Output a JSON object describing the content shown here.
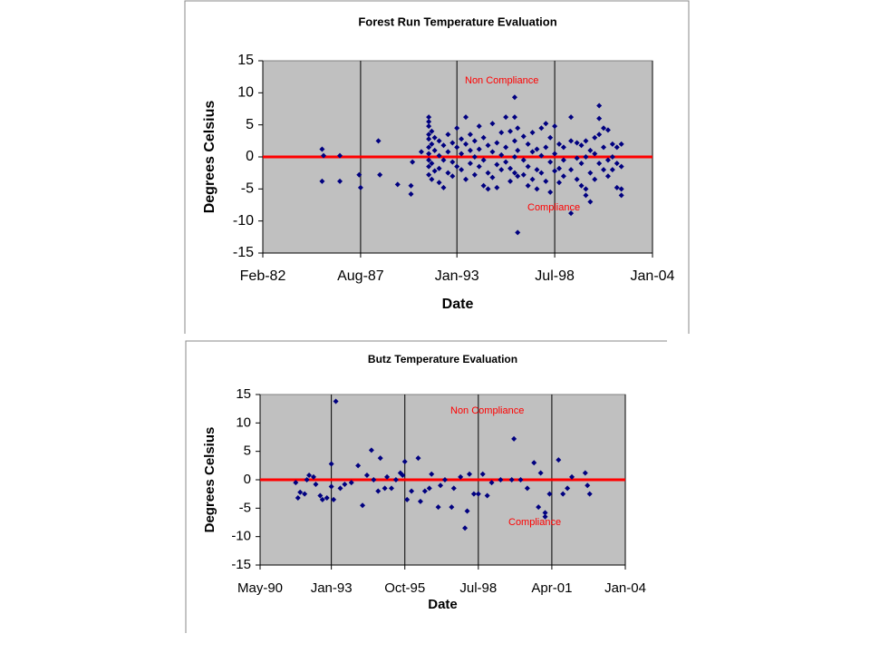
{
  "chart_data": [
    {
      "type": "scatter",
      "title": "Forest Run Temperature Evaluation",
      "xlabel": "Date",
      "ylabel": "Degrees Celsius",
      "color": "#000080",
      "x": [
        "1985-06",
        "1985-06",
        "1985-07",
        "1986-06",
        "1986-06",
        "1987-07",
        "1987-08",
        "1988-08",
        "1988-09",
        "1989-09",
        "1990-06",
        "1990-06",
        "1990-07",
        "1991-01",
        "1991-06",
        "1991-06",
        "1991-06",
        "1991-06",
        "1991-06",
        "1991-06",
        "1991-06",
        "1991-06",
        "1991-06",
        "1991-06",
        "1991-08",
        "1991-08",
        "1991-08",
        "1991-08",
        "1991-10",
        "1991-10",
        "1991-10",
        "1992-01",
        "1992-01",
        "1992-01",
        "1992-01",
        "1992-04",
        "1992-04",
        "1992-04",
        "1992-07",
        "1992-07",
        "1992-07",
        "1992-10",
        "1992-10",
        "1992-10",
        "1993-01",
        "1993-01",
        "1993-01",
        "1993-04",
        "1993-04",
        "1993-04",
        "1993-07",
        "1993-07",
        "1993-07",
        "1993-10",
        "1993-10",
        "1993-10",
        "1994-01",
        "1994-01",
        "1994-01",
        "1994-04",
        "1994-04",
        "1994-04",
        "1994-07",
        "1994-07",
        "1994-07",
        "1994-10",
        "1994-10",
        "1994-10",
        "1995-01",
        "1995-01",
        "1995-01",
        "1995-04",
        "1995-04",
        "1995-04",
        "1995-07",
        "1995-07",
        "1995-07",
        "1995-10",
        "1995-10",
        "1995-10",
        "1996-01",
        "1996-01",
        "1996-01",
        "1996-04",
        "1996-04",
        "1996-04",
        "1996-04",
        "1996-04",
        "1996-06",
        "1996-06",
        "1996-06",
        "1996-06",
        "1996-10",
        "1996-10",
        "1996-10",
        "1997-01",
        "1997-01",
        "1997-01",
        "1997-04",
        "1997-04",
        "1997-04",
        "1997-07",
        "1997-07",
        "1997-07",
        "1997-10",
        "1997-10",
        "1997-10",
        "1998-01",
        "1998-01",
        "1998-01",
        "1998-04",
        "1998-04",
        "1998-04",
        "1998-07",
        "1998-07",
        "1998-07",
        "1998-10",
        "1998-10",
        "1998-10",
        "1999-01",
        "1999-01",
        "1999-01",
        "1999-06",
        "1999-06",
        "1999-06",
        "1999-06",
        "1999-10",
        "1999-10",
        "1999-10",
        "2000-01",
        "2000-01",
        "2000-01",
        "2000-04",
        "2000-04",
        "2000-04",
        "2000-04",
        "2000-07",
        "2000-07",
        "2000-07",
        "2000-10",
        "2000-10",
        "2000-10",
        "2001-01",
        "2001-01",
        "2001-01",
        "2001-01",
        "2001-04",
        "2001-04",
        "2001-04",
        "2001-07",
        "2001-07",
        "2001-07",
        "2001-10",
        "2001-10",
        "2001-10",
        "2002-01",
        "2002-01",
        "2002-01",
        "2002-04",
        "2002-04",
        "2002-04",
        "2002-04"
      ],
      "y": [
        1.2,
        -3.8,
        0.2,
        0.2,
        -3.8,
        -2.8,
        -4.8,
        2.5,
        -2.8,
        -4.3,
        -4.5,
        -5.8,
        -0.8,
        0.8,
        6.2,
        5.5,
        4.8,
        3.5,
        2.8,
        1.5,
        0.5,
        -0.5,
        -1.5,
        -2.8,
        4.0,
        2.0,
        -1.0,
        -3.5,
        3.0,
        1.0,
        -2.2,
        2.5,
        0.2,
        -1.8,
        -4.0,
        1.8,
        -0.5,
        -4.8,
        3.5,
        0.8,
        -2.5,
        2.2,
        -0.8,
        -3.0,
        1.5,
        -1.5,
        4.5,
        2.8,
        0.5,
        -2.0,
        6.2,
        2.0,
        -3.5,
        3.5,
        -1.0,
        1.0,
        2.5,
        0.0,
        -2.8,
        4.8,
        1.2,
        -1.5,
        3.0,
        -0.5,
        -4.5,
        1.8,
        -2.5,
        -5.0,
        5.2,
        0.8,
        -3.2,
        2.2,
        -1.2,
        -4.8,
        3.8,
        0.3,
        -2.0,
        6.2,
        1.5,
        -0.8,
        4.0,
        -1.8,
        -3.8,
        9.3,
        6.2,
        2.5,
        0.0,
        -2.5,
        4.5,
        1.0,
        -3.0,
        -11.8,
        3.2,
        -0.5,
        -2.8,
        2.0,
        -1.5,
        -4.5,
        3.8,
        0.8,
        -3.5,
        1.2,
        -2.0,
        -5.0,
        4.5,
        0.2,
        -2.5,
        5.2,
        1.5,
        -3.8,
        3.0,
        -0.8,
        -5.5,
        4.8,
        0.5,
        -2.2,
        2.0,
        -1.8,
        -4.0,
        1.5,
        -0.5,
        -3.0,
        6.2,
        2.5,
        -2.0,
        -8.8,
        2.2,
        -0.2,
        -3.5,
        1.8,
        -1.0,
        -4.5,
        2.5,
        0.0,
        -6.0,
        -5.0,
        1.0,
        -2.5,
        -7.0,
        3.0,
        0.5,
        -3.5,
        8.0,
        6.0,
        3.5,
        -1.0,
        4.5,
        1.5,
        -2.0,
        4.2,
        -0.5,
        -3.0,
        2.0,
        0.0,
        -2.0,
        1.5,
        -1.0,
        -4.8,
        2.0,
        -1.5,
        -5.0,
        -6.0
      ],
      "xlim": [
        "1982-02",
        "2004-01"
      ],
      "xticks": [
        {
          "value": "1982-02",
          "label": "Feb-82"
        },
        {
          "value": "1987-08",
          "label": "Aug-87"
        },
        {
          "value": "1993-01",
          "label": "Jan-93"
        },
        {
          "value": "1998-07",
          "label": "Jul-98"
        },
        {
          "value": "2004-01",
          "label": "Jan-04"
        }
      ],
      "ylim": [
        -15,
        15
      ],
      "yticks": [
        -15,
        -10,
        -5,
        0,
        5,
        10,
        15
      ],
      "grid": true,
      "reference_line": {
        "value": 0,
        "color": "#ff0000"
      },
      "annotations": [
        "Non Compliance",
        "Compliance"
      ]
    },
    {
      "type": "scatter",
      "title": "Butz Temperature Evaluation",
      "xlabel": "Date",
      "ylabel": "Degrees Celsius",
      "color": "#000080",
      "x": [
        "1991-09",
        "1991-10",
        "1991-11",
        "1992-01",
        "1992-02",
        "1992-03",
        "1992-05",
        "1992-06",
        "1992-08",
        "1992-09",
        "1992-11",
        "1993-01",
        "1993-01",
        "1993-02",
        "1993-03",
        "1993-05",
        "1993-07",
        "1993-10",
        "1994-01",
        "1994-03",
        "1994-05",
        "1994-07",
        "1994-08",
        "1994-10",
        "1994-11",
        "1995-01",
        "1995-02",
        "1995-04",
        "1995-06",
        "1995-08",
        "1995-09",
        "1995-10",
        "1995-11",
        "1996-01",
        "1996-04",
        "1996-05",
        "1996-07",
        "1996-09",
        "1996-10",
        "1997-01",
        "1997-02",
        "1997-04",
        "1997-07",
        "1997-08",
        "1997-11",
        "1998-01",
        "1998-02",
        "1998-03",
        "1998-05",
        "1998-07",
        "1998-09",
        "1998-11",
        "1999-01",
        "1999-05",
        "1999-10",
        "1999-11",
        "2000-02",
        "2000-05",
        "2000-08",
        "2000-10",
        "2000-11",
        "2001-01",
        "2001-01",
        "2001-03",
        "2001-07",
        "2001-09",
        "2001-11",
        "2002-01",
        "2002-07",
        "2002-08",
        "2002-09"
      ],
      "y": [
        -0.5,
        -3.2,
        -2.2,
        -2.5,
        0.0,
        0.8,
        0.5,
        -0.8,
        -2.8,
        -3.5,
        -3.2,
        2.8,
        -1.2,
        -3.5,
        13.8,
        -1.5,
        -0.8,
        -0.5,
        2.5,
        -4.5,
        0.8,
        5.2,
        0.0,
        -2.0,
        3.8,
        -1.5,
        0.5,
        -1.5,
        0.0,
        1.2,
        0.8,
        3.2,
        -3.5,
        -2.0,
        3.8,
        -3.8,
        -2.0,
        -1.5,
        1.0,
        -4.8,
        -1.0,
        0.0,
        -4.8,
        -1.5,
        0.5,
        -8.5,
        -5.5,
        1.0,
        -2.5,
        -2.5,
        1.0,
        -2.8,
        -0.5,
        0.0,
        0.0,
        7.2,
        0.0,
        -1.5,
        3.0,
        -4.8,
        1.2,
        -5.8,
        -6.5,
        -2.5,
        3.5,
        -2.5,
        -1.5,
        0.5,
        1.2,
        -1.0,
        -2.5
      ],
      "xlim": [
        "1990-05",
        "2004-01"
      ],
      "xticks": [
        {
          "value": "1990-05",
          "label": "May-90"
        },
        {
          "value": "1993-01",
          "label": "Jan-93"
        },
        {
          "value": "1995-10",
          "label": "Oct-95"
        },
        {
          "value": "1998-07",
          "label": "Jul-98"
        },
        {
          "value": "2001-04",
          "label": "Apr-01"
        },
        {
          "value": "2004-01",
          "label": "Jan-04"
        }
      ],
      "ylim": [
        -15,
        15
      ],
      "yticks": [
        -15,
        -10,
        -5,
        0,
        5,
        10,
        15
      ],
      "grid": true,
      "reference_line": {
        "value": 0,
        "color": "#ff0000"
      },
      "annotations": [
        "Non Compliance",
        "Compliance"
      ]
    }
  ]
}
